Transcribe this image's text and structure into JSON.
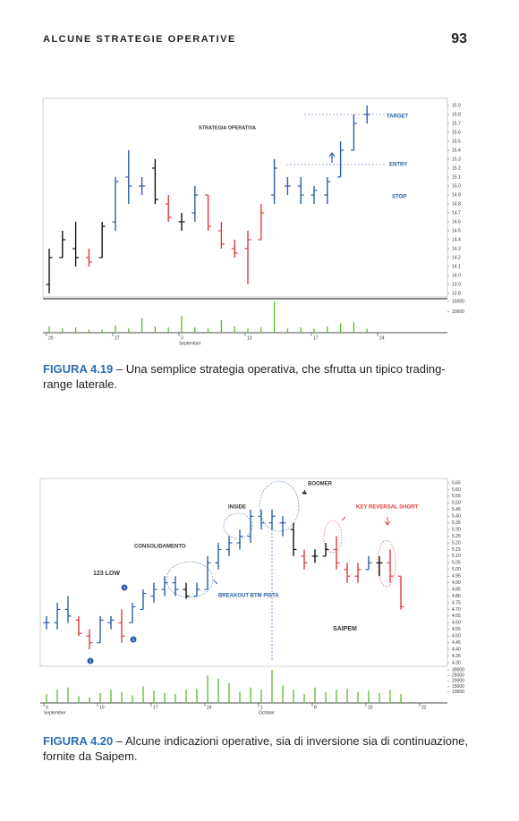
{
  "header": {
    "title": "ALCUNE STRATEGIE OPERATIVE",
    "page": "93"
  },
  "figures": [
    {
      "caption": {
        "label": "FIGURA 4.19",
        "text": "– Una semplice strategia operativa, che sfrutta un tipico trading-range laterale."
      },
      "chart_data": {
        "type": "ohlc",
        "annotations": [
          "STRATEGIA OPERATIVA",
          "TARGET",
          "ENTRY",
          "STOP"
        ],
        "categories": [
          "20",
          null,
          null,
          null,
          null,
          "27",
          null,
          null,
          null,
          null,
          "3",
          null,
          null,
          null,
          null,
          "10",
          null,
          null,
          null,
          null,
          "17",
          null,
          null,
          null,
          null,
          "24"
        ],
        "month_labels": [
          "September"
        ],
        "high": [
          14.3,
          14.5,
          14.6,
          14.3,
          14.6,
          15.1,
          15.4,
          15.1,
          15.3,
          14.9,
          14.7,
          15.0,
          14.9,
          14.6,
          14.4,
          14.5,
          14.8,
          15.3,
          15.1,
          15.1,
          15.0,
          15.1,
          15.5,
          15.8,
          15.9,
          null
        ],
        "low": [
          13.8,
          14.2,
          14.1,
          14.1,
          14.2,
          14.5,
          14.8,
          14.9,
          14.8,
          14.6,
          14.5,
          14.6,
          14.5,
          14.3,
          14.2,
          13.9,
          14.4,
          14.8,
          14.9,
          14.8,
          14.8,
          14.8,
          15.1,
          15.4,
          15.7,
          null
        ],
        "open": [
          13.9,
          14.2,
          14.3,
          14.2,
          14.2,
          14.6,
          15.1,
          15.0,
          15.2,
          14.8,
          14.6,
          14.7,
          14.9,
          14.5,
          14.3,
          14.3,
          14.4,
          14.9,
          15.0,
          15.0,
          14.9,
          14.9,
          15.1,
          15.4,
          15.8,
          null
        ],
        "close": [
          14.2,
          14.4,
          14.2,
          14.15,
          14.55,
          15.05,
          15.0,
          15.0,
          14.85,
          14.65,
          14.6,
          14.9,
          14.55,
          14.35,
          14.25,
          14.4,
          14.7,
          15.2,
          15.0,
          14.9,
          14.95,
          15.05,
          15.4,
          15.7,
          15.8,
          null
        ],
        "colors": [
          "#111",
          "#111",
          "#111",
          "#e03c3c",
          "#111",
          "#2a5ea8",
          "#2a5ea8",
          "#2a5ea8",
          "#111",
          "#e03c3c",
          "#111",
          "#2a5ea8",
          "#e03c3c",
          "#e03c3c",
          "#e03c3c",
          "#e03c3c",
          "#e03c3c",
          "#2a5ea8",
          "#2a5ea8",
          "#2a5ea8",
          "#2a5ea8",
          "#2a5ea8",
          "#2a5ea8",
          "#2a5ea8",
          "#2a5ea8",
          null
        ],
        "volume": [
          3000,
          2000,
          2500,
          1500,
          1500,
          3500,
          2000,
          7000,
          3000,
          2500,
          8000,
          2500,
          2000,
          6000,
          3000,
          2000,
          2500,
          15000,
          2000,
          2500,
          2000,
          3000,
          4500,
          5000,
          2000,
          null
        ],
        "volume_color": "#5cb82e",
        "ylim": [
          13.8,
          15.9
        ],
        "yticks": [
          13.8,
          13.9,
          {
            "value": 14,
            "label": "14.0"
          },
          14.1,
          14.2,
          14.3,
          14.4,
          14.5,
          14.6,
          14.7,
          14.8,
          14.9,
          {
            "value": 15,
            "label": "15.0"
          },
          15.1,
          15.2,
          15.3,
          15.4,
          15.5,
          15.6,
          15.7,
          15.8,
          15.9
        ],
        "vlim": [
          0,
          15000
        ],
        "vticks": [
          10000,
          15000
        ]
      }
    },
    {
      "caption": {
        "label": "FIGURA 4.20",
        "text": "– Alcune indicazioni operative, sia di inversione sia di continuazione, fornite da Saipem."
      },
      "chart_data": {
        "type": "ohlc",
        "annotations": [
          "BOOMER",
          "INSIDE",
          "KEY REVERSAL SHORT",
          "CONSOLIDAMENTO",
          "123 LOW",
          "BREAKOUT BTM PISTA",
          "SAIPEM",
          "1",
          "2",
          "3"
        ],
        "categories": [
          "3",
          null,
          null,
          null,
          null,
          "10",
          null,
          null,
          null,
          null,
          "17",
          null,
          null,
          null,
          null,
          "24",
          null,
          null,
          null,
          null,
          "1",
          null,
          null,
          null,
          null,
          "8",
          null,
          null,
          null,
          null,
          "15",
          null,
          null,
          null,
          null,
          "22"
        ],
        "month_labels": [
          "September",
          "October"
        ],
        "high": [
          4.65,
          4.75,
          4.8,
          4.65,
          4.55,
          4.65,
          4.65,
          4.7,
          4.75,
          4.85,
          4.9,
          4.95,
          4.95,
          4.9,
          4.9,
          5.1,
          5.2,
          5.25,
          5.3,
          5.45,
          5.45,
          5.45,
          5.4,
          5.35,
          5.15,
          5.15,
          5.2,
          5.25,
          5.05,
          5.05,
          5.1,
          5.1,
          5.15,
          4.95,
          null,
          null
        ],
        "low": [
          4.55,
          4.55,
          4.6,
          4.5,
          4.4,
          4.45,
          4.55,
          4.45,
          4.6,
          4.7,
          4.75,
          4.8,
          4.8,
          4.78,
          4.8,
          4.85,
          5.0,
          5.1,
          5.15,
          5.2,
          5.3,
          5.3,
          5.25,
          5.1,
          5.0,
          5.05,
          5.1,
          5.0,
          4.9,
          4.9,
          5.0,
          4.95,
          4.9,
          4.7,
          null,
          null
        ],
        "open": [
          4.6,
          4.6,
          4.7,
          4.62,
          4.5,
          4.45,
          4.6,
          4.6,
          4.6,
          4.7,
          4.8,
          4.85,
          4.9,
          4.85,
          4.8,
          4.85,
          5.05,
          5.15,
          5.2,
          5.25,
          5.4,
          5.35,
          5.35,
          5.3,
          5.1,
          5.1,
          5.1,
          5.15,
          5.0,
          4.95,
          5.0,
          5.05,
          5.05,
          4.95,
          null,
          null
        ],
        "close": [
          4.6,
          4.7,
          4.65,
          4.52,
          4.45,
          4.62,
          4.62,
          4.5,
          4.72,
          4.82,
          4.85,
          4.9,
          4.85,
          4.8,
          4.85,
          5.05,
          5.15,
          5.2,
          5.25,
          5.4,
          5.35,
          5.4,
          5.35,
          5.15,
          5.05,
          5.1,
          5.15,
          5.05,
          4.95,
          5.0,
          5.05,
          5.05,
          4.95,
          4.72,
          null,
          null
        ],
        "colors": [
          "#2a5ea8",
          "#2a5ea8",
          "#2a5ea8",
          "#e03c3c",
          "#e03c3c",
          "#2a5ea8",
          "#2a5ea8",
          "#e03c3c",
          "#2a5ea8",
          "#2a5ea8",
          "#2a5ea8",
          "#2a5ea8",
          "#2a5ea8",
          "#111",
          "#2a5ea8",
          "#2a5ea8",
          "#2a5ea8",
          "#2a5ea8",
          "#2a5ea8",
          "#2a5ea8",
          "#2a5ea8",
          "#2a5ea8",
          "#2a5ea8",
          "#111",
          "#e03c3c",
          "#111",
          "#111",
          "#e03c3c",
          "#e03c3c",
          "#e03c3c",
          "#2a5ea8",
          "#111",
          "#e03c3c",
          "#e03c3c",
          null,
          null
        ],
        "volume": [
          8000,
          12000,
          14000,
          6000,
          5000,
          9000,
          12000,
          10000,
          7000,
          15000,
          11000,
          9000,
          8000,
          12000,
          13000,
          25000,
          22000,
          18000,
          10000,
          14000,
          12000,
          30000,
          16000,
          12000,
          8000,
          14000,
          10000,
          12000,
          13000,
          10000,
          11000,
          9000,
          12000,
          8000,
          null,
          null
        ],
        "volume_color": "#5cb82e",
        "ylim": [
          4.3,
          5.65
        ],
        "yticks": [
          {
            "value": 4.3,
            "label": "4.30"
          },
          4.35,
          {
            "value": 4.4,
            "label": "4.40"
          },
          4.45,
          {
            "value": 4.5,
            "label": "4.50"
          },
          4.55,
          {
            "value": 4.6,
            "label": "4.60"
          },
          4.65,
          {
            "value": 4.7,
            "label": "4.70"
          },
          4.75,
          {
            "value": 4.8,
            "label": "4.80"
          },
          4.85,
          {
            "value": 4.9,
            "label": "4.90"
          },
          4.95,
          {
            "value": 5,
            "label": "5.00"
          },
          5.05,
          {
            "value": 5.1,
            "label": "5.10"
          },
          5.15,
          {
            "value": 5.2,
            "label": "5.20"
          },
          5.25,
          {
            "value": 5.3,
            "label": "5.30"
          },
          5.35,
          {
            "value": 5.4,
            "label": "5.40"
          },
          5.45,
          {
            "value": 5.5,
            "label": "5.50"
          },
          5.55,
          {
            "value": 5.6,
            "label": "5.60"
          },
          5.65
        ],
        "vlim": [
          0,
          30000
        ],
        "vticks": [
          10000,
          15000,
          20000,
          25000,
          30000
        ]
      }
    }
  ]
}
